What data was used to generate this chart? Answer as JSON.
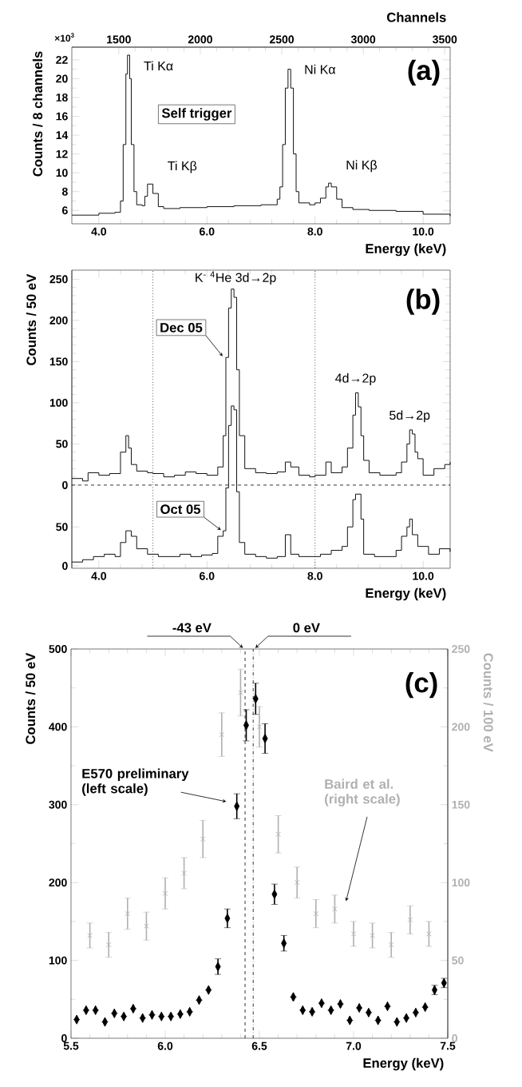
{
  "chart_data": [
    {
      "type": "step",
      "title": "(a)",
      "xlabel": "Energy (keV)",
      "ylabel": "Counts / 8 channels",
      "x2label": "Channels",
      "color": "#000000",
      "x": [
        3.5,
        4.0,
        4.3,
        4.4,
        4.45,
        4.5,
        4.53,
        4.57,
        4.6,
        4.65,
        4.7,
        4.8,
        4.85,
        4.9,
        4.95,
        5.0,
        5.1,
        5.2,
        5.5,
        6.0,
        6.5,
        7.0,
        7.2,
        7.3,
        7.35,
        7.4,
        7.45,
        7.5,
        7.55,
        7.6,
        7.65,
        7.7,
        7.9,
        8.0,
        8.1,
        8.2,
        8.25,
        8.3,
        8.4,
        8.5,
        8.7,
        9.0,
        9.5,
        10.0,
        10.5
      ],
      "values": [
        5.5,
        5.7,
        5.8,
        7.0,
        13.0,
        20.5,
        22.5,
        20.0,
        13.0,
        8.0,
        6.6,
        6.5,
        7.5,
        8.8,
        8.8,
        7.8,
        6.4,
        6.2,
        6.3,
        6.4,
        6.5,
        6.6,
        6.6,
        7.2,
        8.5,
        13.0,
        19.0,
        21.0,
        19.0,
        12.0,
        8.0,
        6.8,
        6.6,
        6.8,
        7.3,
        8.5,
        8.9,
        8.5,
        7.2,
        6.3,
        6.1,
        6.0,
        5.9,
        5.6,
        5.4
      ],
      "xlim": [
        3.5,
        10.5
      ],
      "xticks": [
        {
          "value": 4,
          "label": "4.0"
        },
        {
          "value": 6,
          "label": "6.0"
        },
        {
          "value": 8,
          "label": "8.0"
        },
        {
          "value": 10,
          "label": "10.0"
        }
      ],
      "ylim": [
        4.58,
        23.35
      ],
      "yticks": [
        6,
        8,
        10,
        12,
        14,
        16,
        18,
        20,
        22
      ],
      "x2lim": [
        1212,
        3533
      ],
      "x2ticks": [
        1500,
        2000,
        2500,
        3000,
        3500
      ],
      "annotations": [
        "×10$^{3}$",
        "Self trigger",
        {
          "text": "Ti Kα",
          "x": 4.53,
          "y": 22.5
        },
        {
          "text": "Ti Kβ",
          "x": 4.93,
          "y": 8.8
        },
        {
          "text": "Ni Kα",
          "x": 7.5,
          "y": 21.0
        },
        {
          "text": "Ni Kβ",
          "x": 8.25,
          "y": 8.9
        }
      ]
    },
    {
      "type": "step",
      "title": "(b)",
      "xlabel": "Energy (keV)",
      "ylabel": "Counts / 50 eV",
      "series": [
        {
          "color": "#000000",
          "x": [
            3.5,
            3.7,
            3.8,
            4.0,
            4.2,
            4.4,
            4.5,
            4.55,
            4.6,
            4.7,
            4.9,
            5.0,
            5.2,
            5.4,
            5.6,
            5.8,
            6.0,
            6.2,
            6.3,
            6.35,
            6.4,
            6.45,
            6.5,
            6.55,
            6.6,
            6.7,
            6.9,
            7.1,
            7.3,
            7.45,
            7.55,
            7.7,
            7.9,
            8.0,
            8.2,
            8.3,
            8.5,
            8.6,
            8.7,
            8.75,
            8.8,
            8.85,
            8.9,
            9.0,
            9.2,
            9.5,
            9.6,
            9.7,
            9.75,
            9.8,
            9.85,
            9.9,
            10.0,
            10.2,
            10.4,
            10.5
          ],
          "values": [
            8,
            5,
            15,
            12,
            14,
            40,
            60,
            45,
            25,
            17,
            15,
            14,
            10,
            12,
            16,
            14,
            12,
            22,
            60,
            155,
            215,
            238,
            228,
            140,
            60,
            20,
            15,
            14,
            16,
            28,
            22,
            12,
            10,
            12,
            28,
            15,
            22,
            45,
            85,
            112,
            95,
            60,
            30,
            15,
            12,
            15,
            28,
            50,
            67,
            62,
            40,
            32,
            12,
            20,
            25,
            28
          ]
        },
        {
          "color": "#000000",
          "axis": "y2",
          "x": [
            3.5,
            3.7,
            3.9,
            4.1,
            4.3,
            4.4,
            4.5,
            4.6,
            4.7,
            4.9,
            5.1,
            5.3,
            5.5,
            5.7,
            5.9,
            6.1,
            6.2,
            6.3,
            6.35,
            6.4,
            6.45,
            6.5,
            6.55,
            6.6,
            6.7,
            6.9,
            7.1,
            7.3,
            7.45,
            7.55,
            7.7,
            7.9,
            8.1,
            8.3,
            8.5,
            8.6,
            8.7,
            8.75,
            8.85,
            8.9,
            9.1,
            9.3,
            9.5,
            9.6,
            9.7,
            9.75,
            9.8,
            9.9,
            10.1,
            10.3,
            10.5
          ],
          "values": [
            5,
            8,
            12,
            15,
            12,
            30,
            45,
            38,
            22,
            15,
            12,
            12,
            15,
            12,
            14,
            16,
            38,
            45,
            100,
            180,
            205,
            200,
            95,
            30,
            15,
            12,
            10,
            12,
            40,
            15,
            12,
            12,
            15,
            20,
            25,
            50,
            85,
            92,
            60,
            15,
            12,
            12,
            20,
            38,
            50,
            60,
            40,
            25,
            15,
            22,
            18
          ]
        }
      ],
      "xlim": [
        3.5,
        10.5
      ],
      "xticks": [
        {
          "value": 4,
          "label": "4.0"
        },
        {
          "value": 6,
          "label": "6.0"
        },
        {
          "value": 8,
          "label": "8.0"
        },
        {
          "value": 10,
          "label": "10.0"
        }
      ],
      "ylim": [
        -101,
        261
      ],
      "yticks": [
        0,
        50,
        100,
        150,
        200,
        250
      ],
      "y2lim": [
        -3,
        379
      ],
      "y2ticks": [
        0,
        50
      ],
      "ref_lines": [
        {
          "axis": "x",
          "value": 5,
          "line_style": "dotted"
        },
        {
          "axis": "x",
          "value": 8,
          "line_style": "dotted"
        },
        {
          "axis": "y",
          "value": 0,
          "line_style": "dashed"
        }
      ],
      "annotations": [
        {
          "text": "K$^{-}$ $^{4}$He  3d→2p",
          "x": 6.45,
          "y": 238
        },
        {
          "text": "4d→2p",
          "x": 8.75,
          "y": 112
        },
        {
          "text": "5d→2p",
          "x": 9.75,
          "y": 67
        },
        {
          "text": "Dec 05",
          "x": 6.33,
          "y": 155
        },
        "Oct 05"
      ]
    },
    {
      "type": "scatter",
      "title": "(c)",
      "xlabel": "Energy (keV)",
      "ylabel": "Counts / 50 eV",
      "y2label": "Counts / 100 eV",
      "series": [
        {
          "color": "#000000",
          "marker": "diamond",
          "x": [
            5.53,
            5.58,
            5.63,
            5.68,
            5.73,
            5.78,
            5.83,
            5.88,
            5.93,
            5.98,
            6.03,
            6.08,
            6.13,
            6.18,
            6.23,
            6.28,
            6.33,
            6.38,
            6.43,
            6.48,
            6.53,
            6.58,
            6.63,
            6.68,
            6.73,
            6.78,
            6.83,
            6.88,
            6.93,
            6.98,
            7.03,
            7.08,
            7.13,
            7.18,
            7.23,
            7.28,
            7.33,
            7.38,
            7.43,
            7.48
          ],
          "values": [
            24,
            36,
            36,
            21,
            32,
            28,
            38,
            26,
            30,
            28,
            28,
            31,
            34,
            49,
            62,
            92,
            154,
            298,
            402,
            436,
            385,
            185,
            122,
            53,
            36,
            34,
            45,
            36,
            44,
            23,
            39,
            33,
            23,
            41,
            21,
            26,
            33,
            40,
            62,
            71
          ],
          "errors": [
            null,
            null,
            null,
            null,
            null,
            null,
            null,
            null,
            null,
            null,
            null,
            null,
            null,
            null,
            null,
            10,
            12,
            16,
            20,
            20,
            19,
            13,
            10,
            null,
            null,
            null,
            null,
            null,
            null,
            null,
            null,
            null,
            null,
            null,
            null,
            null,
            null,
            null,
            6,
            6
          ]
        },
        {
          "color": "#b0b0b0",
          "marker": "cross",
          "axis": "y2",
          "x": [
            5.6,
            5.7,
            5.8,
            5.9,
            6.0,
            6.1,
            6.2,
            6.3,
            6.4,
            6.5,
            6.6,
            6.7,
            6.8,
            6.9,
            7.0,
            7.1,
            7.2,
            7.3,
            7.4
          ],
          "values": [
            66,
            60,
            80,
            72,
            93,
            106,
            128,
            195,
            222,
            200,
            131,
            100,
            80,
            83,
            67,
            66,
            60,
            76,
            67
          ],
          "errors": [
            8,
            8,
            10,
            9,
            10,
            10,
            12,
            14,
            15,
            13,
            12,
            10,
            9,
            9,
            8,
            8,
            8,
            9,
            8
          ]
        }
      ],
      "xlim": [
        5.5,
        7.5
      ],
      "xticks": [
        5.5,
        {
          "value": 6,
          "label": "6.0"
        },
        6.5,
        {
          "value": 7,
          "label": "7.0"
        },
        7.5
      ],
      "ylim": [
        0,
        500
      ],
      "yticks": [
        0,
        100,
        200,
        300,
        400,
        500
      ],
      "y2lim": [
        0,
        250
      ],
      "y2ticks": [
        0,
        50,
        100,
        150,
        200,
        250
      ],
      "ref_lines": [
        {
          "axis": "x",
          "value": 6.424,
          "label": "-43 eV",
          "line_style": "dashed"
        },
        {
          "axis": "x",
          "value": 6.467,
          "label": "0 eV",
          "line_style": "dashdot"
        }
      ],
      "annotations": [
        "E570 preliminary (left scale)",
        "Baird et al. (right scale)"
      ]
    }
  ]
}
